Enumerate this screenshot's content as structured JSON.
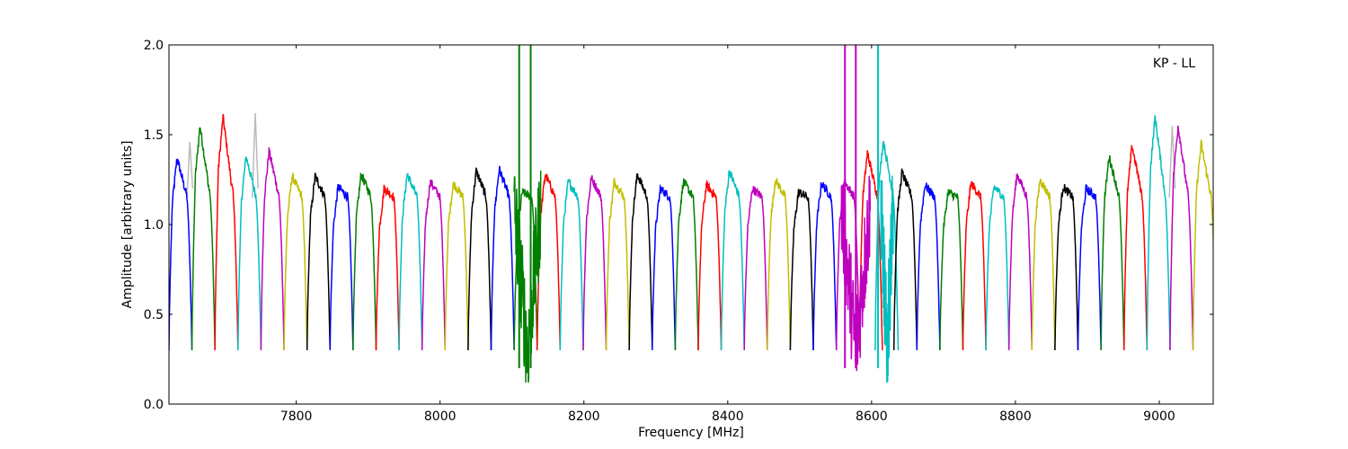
{
  "chart_data": {
    "type": "line",
    "title": "",
    "annotation": "KP - LL",
    "xlabel": "Frequency [MHz]",
    "ylabel": "Amplitude [arbitrary units]",
    "xlim": [
      7623,
      9075
    ],
    "ylim": [
      0.0,
      2.0
    ],
    "xticks": [
      7800,
      8000,
      8200,
      8400,
      8600,
      8800,
      9000
    ],
    "xtick_labels": [
      "7800",
      "8000",
      "8200",
      "8400",
      "8600",
      "8800",
      "9000"
    ],
    "yticks": [
      0.0,
      0.5,
      1.0,
      1.5,
      2.0
    ],
    "ytick_labels": [
      "0.0",
      "0.5",
      "1.0",
      "1.5",
      "2.0"
    ],
    "grid": false,
    "channel_width_mhz": 32,
    "channels": [
      {
        "start": 7623,
        "color": "#0000ff",
        "peak": 1.37
      },
      {
        "start": 7655,
        "color": "#008000",
        "peak": 1.55
      },
      {
        "start": 7687,
        "color": "#ff0000",
        "peak": 1.6
      },
      {
        "start": 7719,
        "color": "#00bfbf",
        "peak": 1.38
      },
      {
        "start": 7751,
        "color": "#bf00bf",
        "peak": 1.41
      },
      {
        "start": 7783,
        "color": "#bfbf00",
        "peak": 1.27
      },
      {
        "start": 7815,
        "color": "#000000",
        "peak": 1.27
      },
      {
        "start": 7847,
        "color": "#0000ff",
        "peak": 1.21
      },
      {
        "start": 7879,
        "color": "#008000",
        "peak": 1.28
      },
      {
        "start": 7911,
        "color": "#ff0000",
        "peak": 1.2
      },
      {
        "start": 7943,
        "color": "#00bfbf",
        "peak": 1.28
      },
      {
        "start": 7975,
        "color": "#bf00bf",
        "peak": 1.24
      },
      {
        "start": 8007,
        "color": "#bfbf00",
        "peak": 1.23
      },
      {
        "start": 8039,
        "color": "#000000",
        "peak": 1.3
      },
      {
        "start": 8071,
        "color": "#0000ff",
        "peak": 1.31
      },
      {
        "start": 8103,
        "color": "#008000",
        "peak": 1.18
      },
      {
        "start": 8135,
        "color": "#ff0000",
        "peak": 1.28
      },
      {
        "start": 8167,
        "color": "#00bfbf",
        "peak": 1.24
      },
      {
        "start": 8199,
        "color": "#bf00bf",
        "peak": 1.26
      },
      {
        "start": 8231,
        "color": "#bfbf00",
        "peak": 1.24
      },
      {
        "start": 8263,
        "color": "#000000",
        "peak": 1.28
      },
      {
        "start": 8295,
        "color": "#0000ff",
        "peak": 1.2
      },
      {
        "start": 8327,
        "color": "#008000",
        "peak": 1.24
      },
      {
        "start": 8359,
        "color": "#ff0000",
        "peak": 1.22
      },
      {
        "start": 8391,
        "color": "#00bfbf",
        "peak": 1.3
      },
      {
        "start": 8423,
        "color": "#bf00bf",
        "peak": 1.2
      },
      {
        "start": 8455,
        "color": "#bfbf00",
        "peak": 1.25
      },
      {
        "start": 8487,
        "color": "#000000",
        "peak": 1.18
      },
      {
        "start": 8519,
        "color": "#0000ff",
        "peak": 1.23
      },
      {
        "start": 8551,
        "color": "#bf00bf",
        "peak": 1.24
      },
      {
        "start": 8583,
        "color": "#ff0000",
        "peak": 1.4
      },
      {
        "start": 8605,
        "color": "#00bfbf",
        "peak": 1.47
      },
      {
        "start": 8631,
        "color": "#000000",
        "peak": 1.29
      },
      {
        "start": 8663,
        "color": "#0000ff",
        "peak": 1.22
      },
      {
        "start": 8695,
        "color": "#008000",
        "peak": 1.18
      },
      {
        "start": 8727,
        "color": "#ff0000",
        "peak": 1.23
      },
      {
        "start": 8759,
        "color": "#00bfbf",
        "peak": 1.21
      },
      {
        "start": 8791,
        "color": "#bf00bf",
        "peak": 1.28
      },
      {
        "start": 8823,
        "color": "#bfbf00",
        "peak": 1.25
      },
      {
        "start": 8855,
        "color": "#000000",
        "peak": 1.21
      },
      {
        "start": 8887,
        "color": "#0000ff",
        "peak": 1.2
      },
      {
        "start": 8919,
        "color": "#008000",
        "peak": 1.38
      },
      {
        "start": 8951,
        "color": "#ff0000",
        "peak": 1.44
      },
      {
        "start": 8983,
        "color": "#00bfbf",
        "peak": 1.6
      },
      {
        "start": 9015,
        "color": "#bf00bf",
        "peak": 1.55
      },
      {
        "start": 9047,
        "color": "#bfbf00",
        "peak": 1.45
      }
    ],
    "rfi_spikes": [
      {
        "x": 8110,
        "color": "#008000"
      },
      {
        "x": 8126,
        "color": "#008000"
      },
      {
        "x": 8563,
        "color": "#bf00bf"
      },
      {
        "x": 8578,
        "color": "#bf00bf"
      },
      {
        "x": 8609,
        "color": "#00bfbf"
      }
    ],
    "rfi_noise": [
      {
        "x": [
          8103,
          8140
        ],
        "color": "#008000"
      },
      {
        "x": [
          8558,
          8598
        ],
        "color": "#bf00bf"
      },
      {
        "x": [
          8613,
          8630
        ],
        "color": "#00bfbf"
      }
    ],
    "gray_spikes": [
      {
        "x": 7652,
        "y": 1.46
      },
      {
        "x": 7743,
        "y": 1.62
      },
      {
        "x": 9018,
        "y": 1.55
      }
    ]
  }
}
